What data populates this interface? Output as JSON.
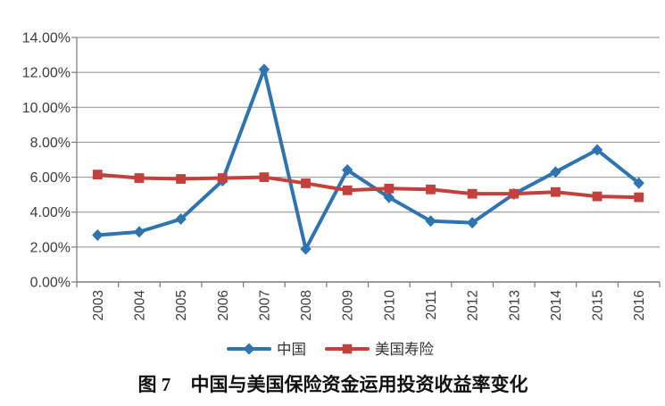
{
  "figure": {
    "caption_prefix": "图 7",
    "caption_title": "中国与美国保险资金运用投资收益率变化"
  },
  "chart_data": {
    "type": "line",
    "title": "图 7 中国与美国保险资金运用投资收益率变化",
    "categories": [
      "2003",
      "2004",
      "2005",
      "2006",
      "2007",
      "2008",
      "2009",
      "2010",
      "2011",
      "2012",
      "2013",
      "2014",
      "2015",
      "2016"
    ],
    "series": [
      {
        "name": "中国",
        "marker": "diamond",
        "color": "#2E74B0",
        "values": [
          2.68,
          2.87,
          3.6,
          5.8,
          12.17,
          1.89,
          6.41,
          4.84,
          3.49,
          3.39,
          5.04,
          6.3,
          7.56,
          5.66
        ]
      },
      {
        "name": "美国寿险",
        "marker": "square",
        "color": "#C2413C",
        "values": [
          6.15,
          5.95,
          5.9,
          5.95,
          6.0,
          5.65,
          5.25,
          5.35,
          5.3,
          5.05,
          5.05,
          5.15,
          4.9,
          4.85
        ]
      }
    ],
    "xlabel": "",
    "ylabel": "",
    "ylim": [
      0,
      14
    ],
    "ytick_step": 2,
    "ytick_labels": [
      "14.00%",
      "12.00%",
      "10.00%",
      "8.00%",
      "6.00%",
      "4.00%",
      "2.00%",
      "0.00%"
    ],
    "grid": true,
    "legend_position": "bottom",
    "colors": {
      "grid": "#8E8E8E",
      "axis": "#7A7A7A",
      "tick_label": "#3D3D3D",
      "background": "#FFFFFF"
    }
  }
}
